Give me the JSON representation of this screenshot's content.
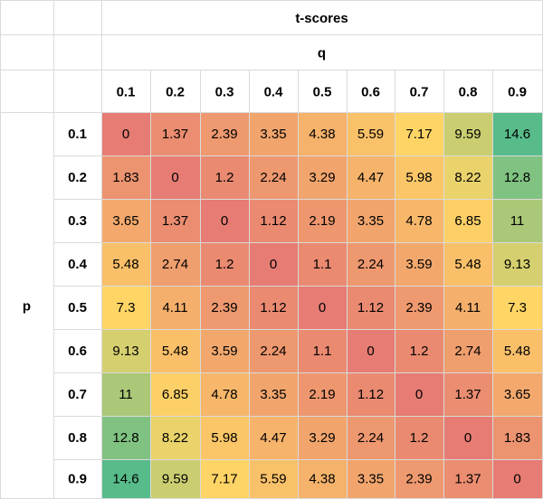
{
  "chart_data": {
    "type": "heatmap",
    "title": "t-scores",
    "xlabel": "q",
    "ylabel": "p",
    "x": [
      "0.1",
      "0.2",
      "0.3",
      "0.4",
      "0.5",
      "0.6",
      "0.7",
      "0.8",
      "0.9"
    ],
    "y": [
      "0.1",
      "0.2",
      "0.3",
      "0.4",
      "0.5",
      "0.6",
      "0.7",
      "0.8",
      "0.9"
    ],
    "values": [
      [
        "0",
        "1.37",
        "2.39",
        "3.35",
        "4.38",
        "5.59",
        "7.17",
        "9.59",
        "14.6"
      ],
      [
        "1.83",
        "0",
        "1.2",
        "2.24",
        "3.29",
        "4.47",
        "5.98",
        "8.22",
        "12.8"
      ],
      [
        "3.65",
        "1.37",
        "0",
        "1.12",
        "2.19",
        "3.35",
        "4.78",
        "6.85",
        "11"
      ],
      [
        "5.48",
        "2.74",
        "1.2",
        "0",
        "1.1",
        "2.24",
        "3.59",
        "5.48",
        "9.13"
      ],
      [
        "7.3",
        "4.11",
        "2.39",
        "1.12",
        "0",
        "1.12",
        "2.39",
        "4.11",
        "7.3"
      ],
      [
        "9.13",
        "5.48",
        "3.59",
        "2.24",
        "1.1",
        "0",
        "1.2",
        "2.74",
        "5.48"
      ],
      [
        "11",
        "6.85",
        "4.78",
        "3.35",
        "2.19",
        "1.12",
        "0",
        "1.37",
        "3.65"
      ],
      [
        "12.8",
        "8.22",
        "5.98",
        "4.47",
        "3.29",
        "2.24",
        "1.2",
        "0",
        "1.83"
      ],
      [
        "14.6",
        "9.59",
        "7.17",
        "5.59",
        "4.38",
        "3.35",
        "2.39",
        "1.37",
        "0"
      ]
    ],
    "color_scale": {
      "low": "#e67c73",
      "mid": "#ffd666",
      "high": "#57bb8a",
      "domain": [
        0,
        14.6
      ]
    },
    "grid": true,
    "legend": "none"
  }
}
